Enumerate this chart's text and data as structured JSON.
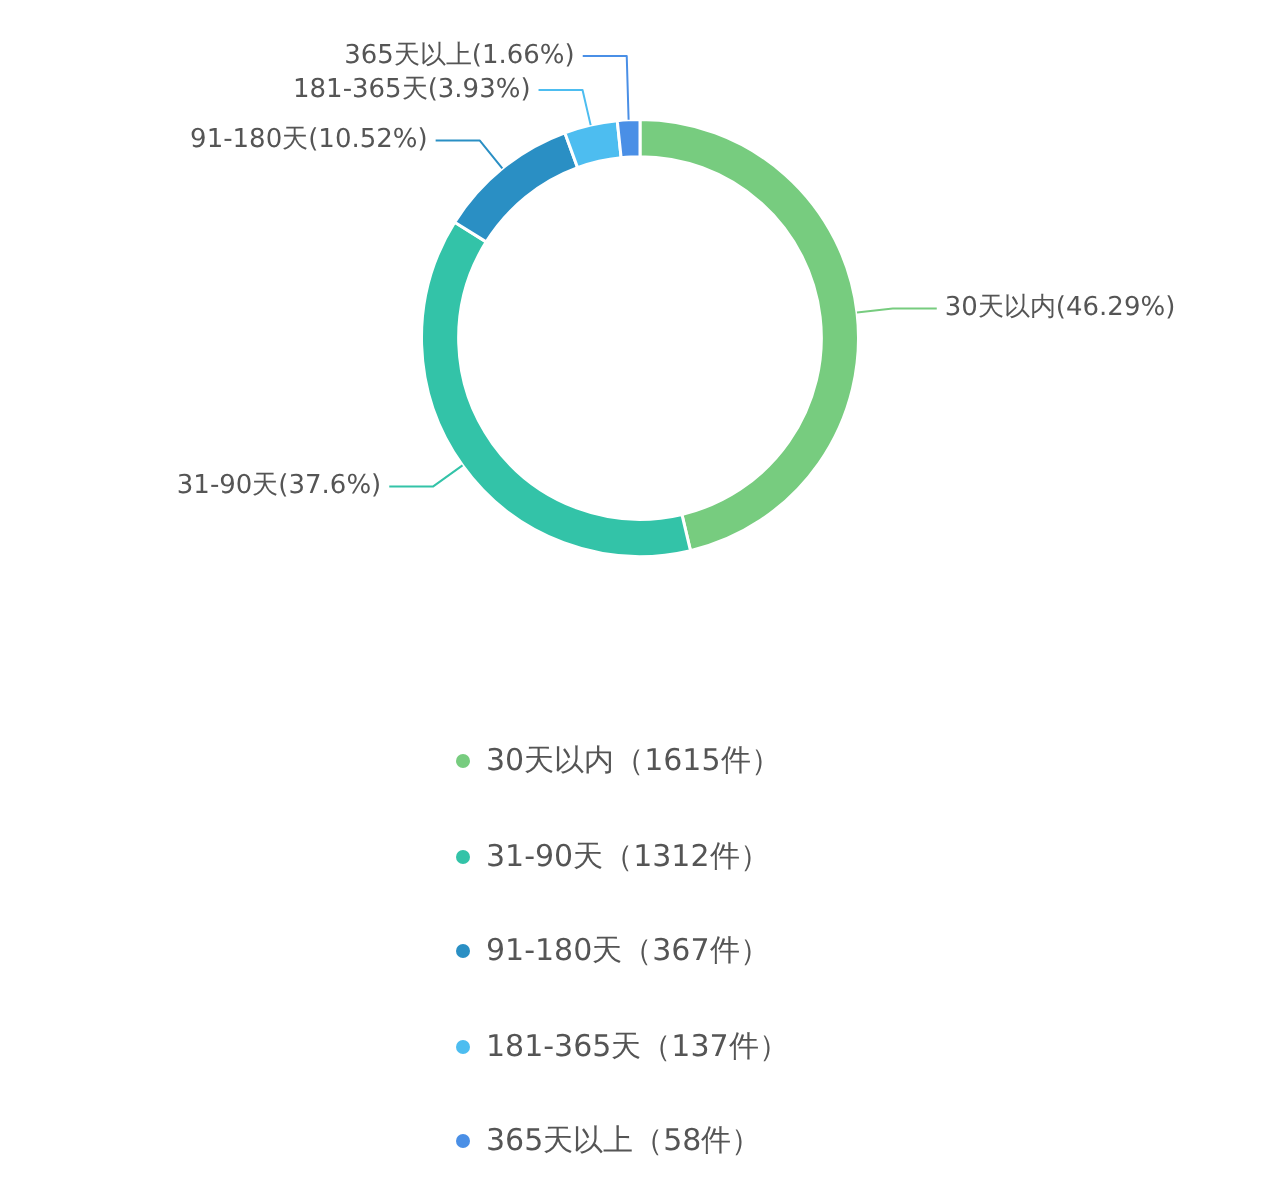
{
  "chart_data": {
    "type": "donut",
    "categories": [
      "30天以内（1615件）",
      "31-90天（1312件）",
      "91-180天（367件）",
      "181-365天（137件）",
      "365天以上（58件）"
    ],
    "values": [
      46.29,
      37.6,
      10.52,
      3.93,
      1.66
    ],
    "value_labels": [
      "30天以内(46.29%)",
      "31-90天(37.6%)",
      "91-180天(10.52%)",
      "181-365天(3.93%)",
      "365天以上(1.66%)"
    ],
    "colors": [
      "#77cc7f",
      "#33c3a8",
      "#2a8fc4",
      "#4dbdf0",
      "#4a8fe6"
    ],
    "legend": "bottom"
  }
}
